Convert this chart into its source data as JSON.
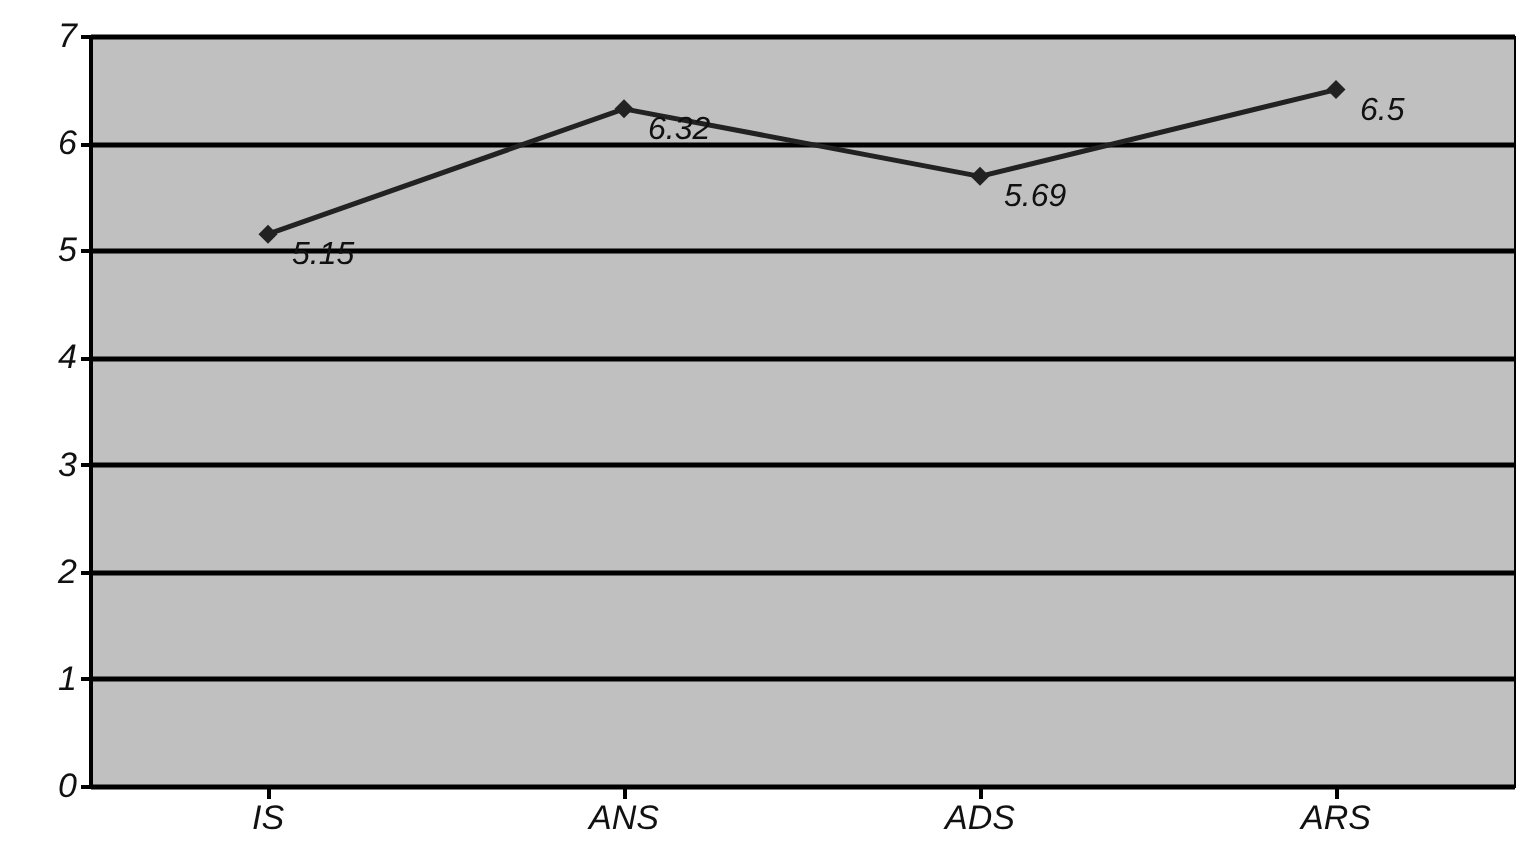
{
  "chart_data": {
    "type": "line",
    "categories": [
      "IS",
      "ANS",
      "ADS",
      "ARS"
    ],
    "values": [
      5.15,
      6.32,
      5.69,
      6.5
    ],
    "color": "#222222",
    "ylim": [
      0,
      7
    ],
    "yticks": [
      0,
      1,
      2,
      3,
      4,
      5,
      6,
      7
    ],
    "grid": "y",
    "marker": "diamond",
    "data_labels": true
  }
}
